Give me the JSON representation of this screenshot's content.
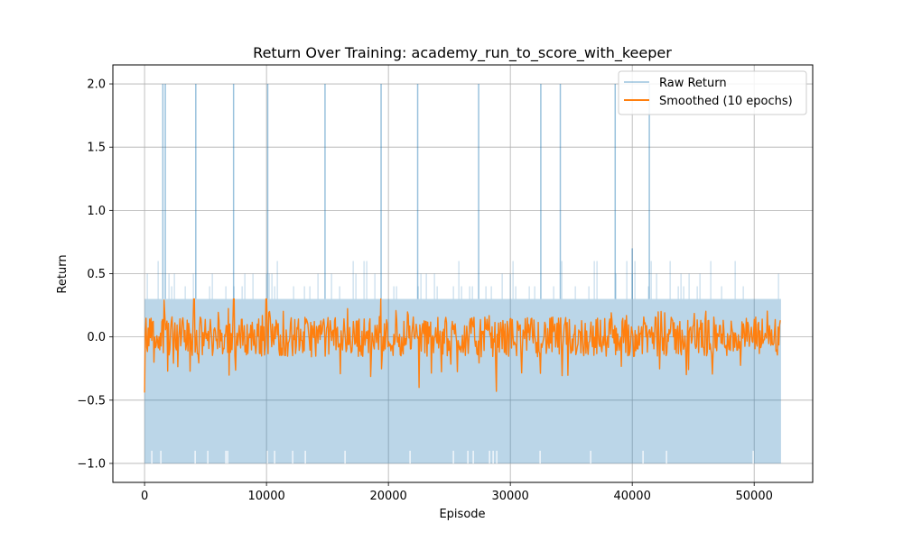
{
  "chart_data": {
    "type": "line",
    "title": "Return Over Training: academy_run_to_score_with_keeper",
    "xlabel": "Episode",
    "ylabel": "Return",
    "xlim": [
      -2600,
      54800
    ],
    "ylim": [
      -1.15,
      2.15
    ],
    "xticks": [
      0,
      10000,
      20000,
      30000,
      40000,
      50000
    ],
    "yticks": [
      -1.0,
      -0.5,
      0.0,
      0.5,
      1.0,
      1.5,
      2.0
    ],
    "xtick_labels": [
      "0",
      "10000",
      "20000",
      "30000",
      "40000",
      "50000"
    ],
    "ytick_labels": [
      "−1.0",
      "−0.5",
      "0.0",
      "0.5",
      "1.0",
      "1.5",
      "2.0"
    ],
    "grid": true,
    "legend_position": "top-right",
    "series": [
      {
        "name": "Raw Return",
        "color": "#1f77b4",
        "opacity": 0.3,
        "episode_range": [
          0,
          52200
        ],
        "band_low": -1.0,
        "band_high": 0.3,
        "spikes_x": [
          1500,
          1700,
          4200,
          7300,
          10100,
          14800,
          19400,
          22400,
          27400,
          32500,
          34100,
          38600,
          40000,
          41400
        ],
        "spikes_y": [
          2.0,
          2.0,
          2.0,
          2.0,
          2.0,
          2.0,
          2.0,
          2.0,
          2.0,
          2.0,
          2.0,
          2.0,
          0.7,
          2.0
        ]
      },
      {
        "name": "Smoothed (10 epochs)",
        "color": "#ff7f0e",
        "opacity": 1,
        "episode_range": [
          0,
          52200
        ],
        "mean": 0.0,
        "band_low": -0.2,
        "band_high": 0.15,
        "spikes_x": [
          0,
          1600,
          4100,
          7300,
          10000,
          19400,
          22500,
          28900
        ],
        "spikes_y": [
          -0.44,
          0.29,
          0.3,
          0.3,
          0.3,
          0.3,
          -0.4,
          -0.43
        ]
      }
    ]
  }
}
